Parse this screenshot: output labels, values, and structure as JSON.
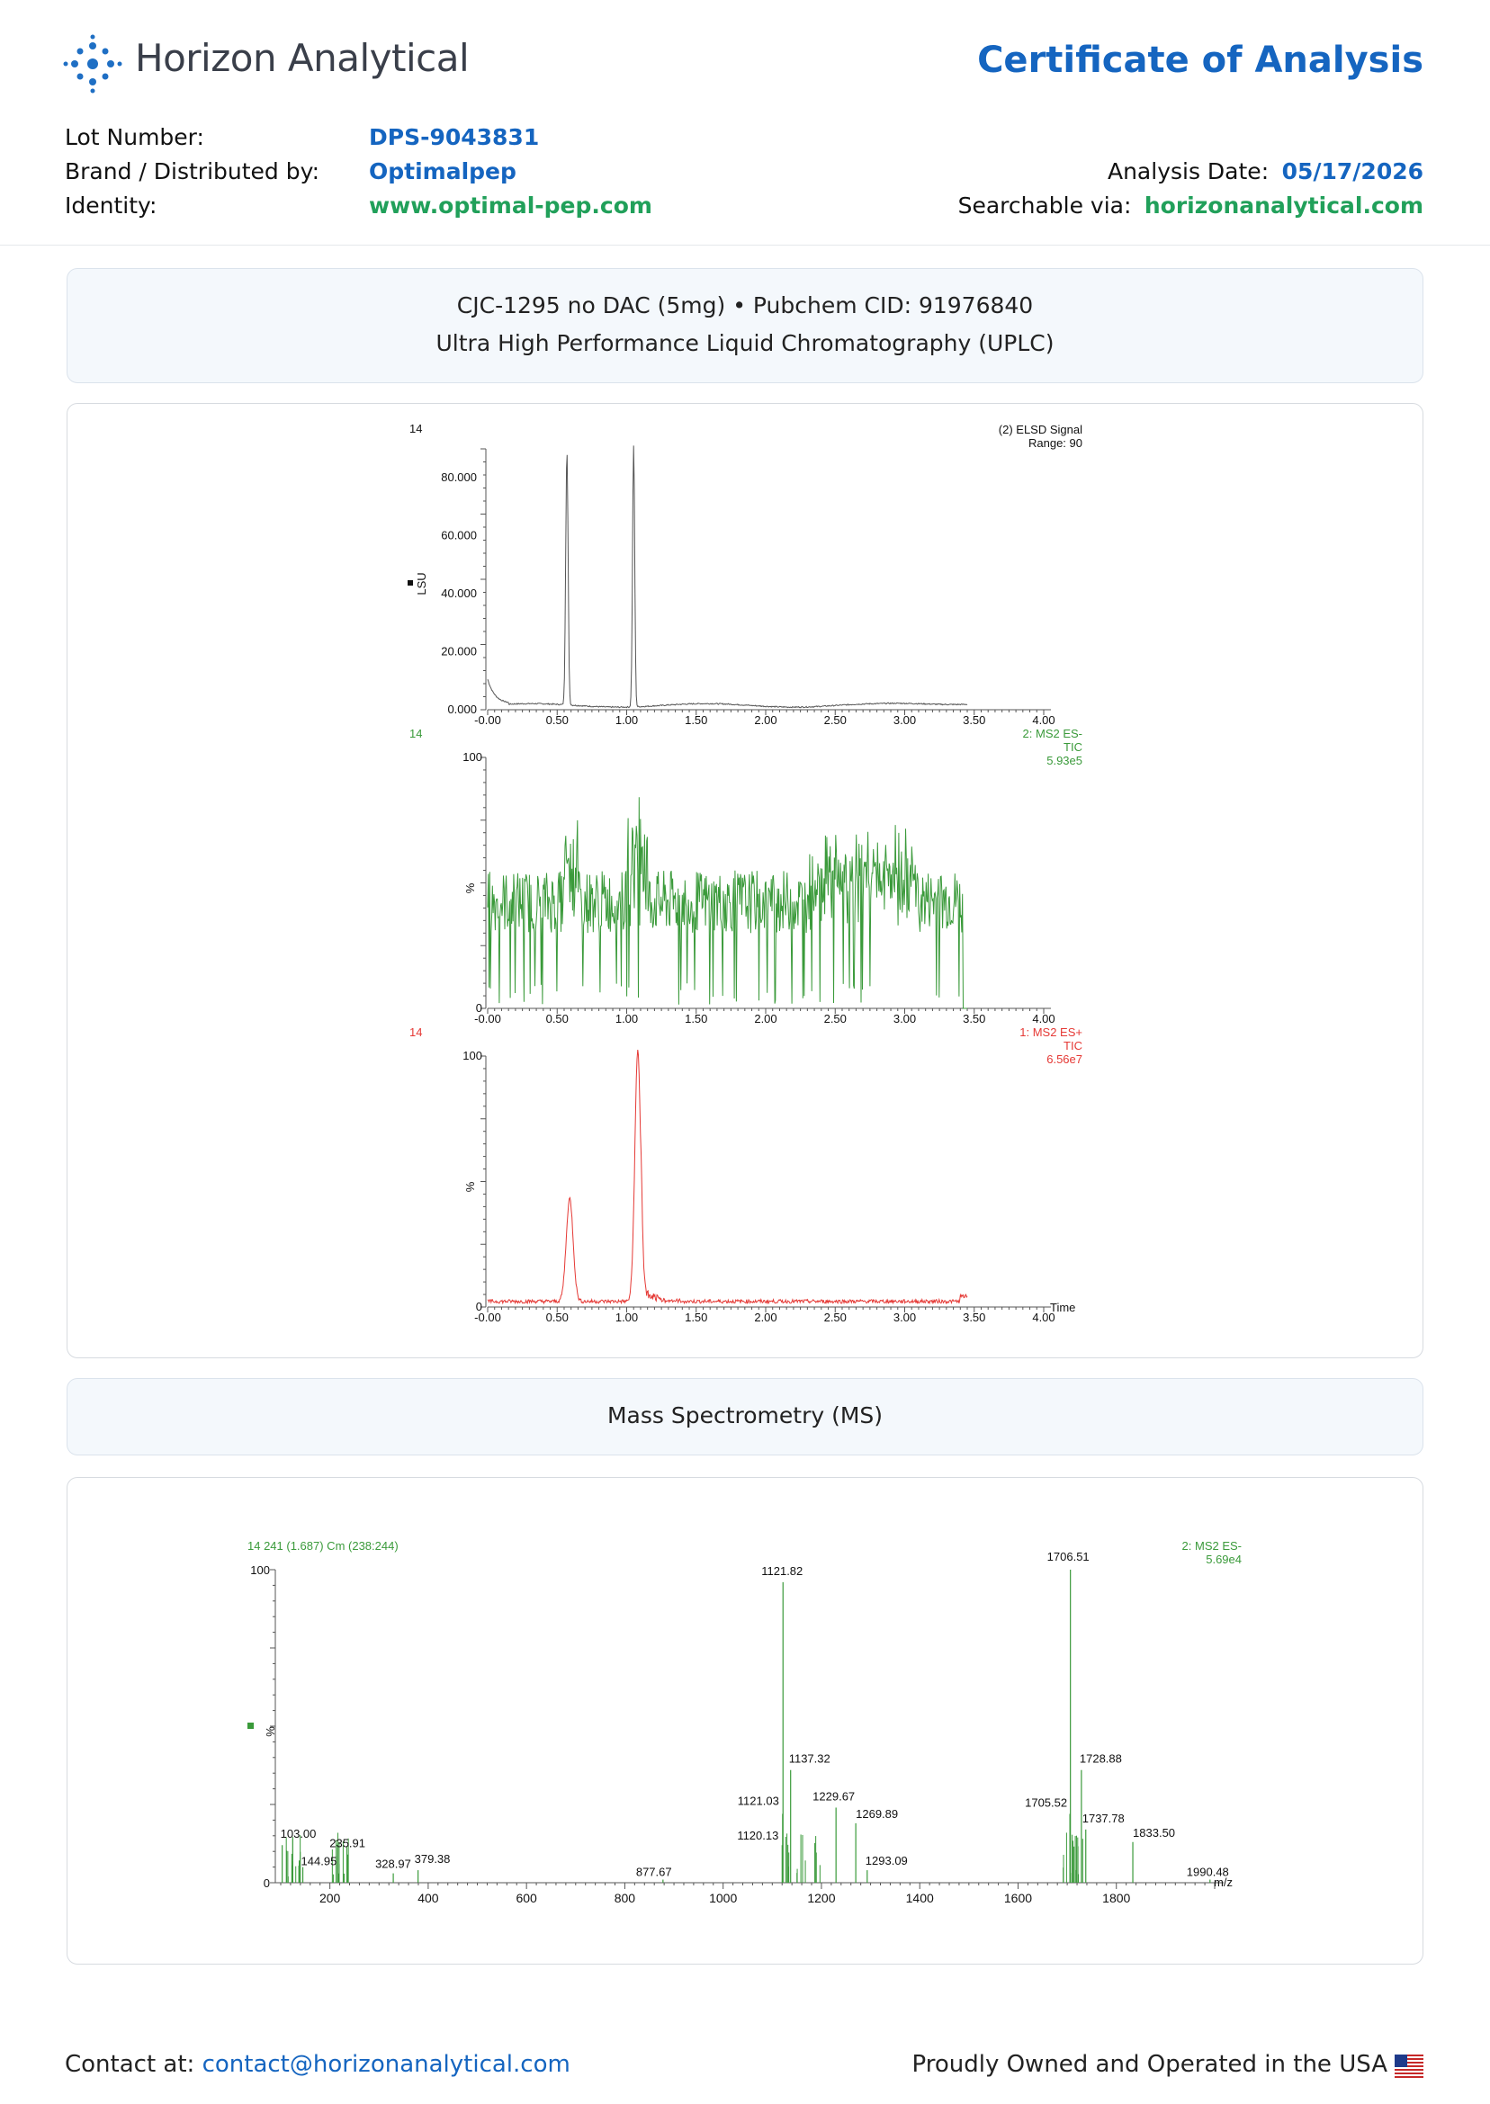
{
  "header": {
    "brand": "Horizon Analytical",
    "title": "Certificate of Analysis"
  },
  "meta": {
    "lot_label": "Lot Number:",
    "lot_value": "DPS-9043831",
    "brand_label": "Brand / Distributed by:",
    "brand_value": "Optimalpep",
    "identity_label": "Identity:",
    "identity_value": "www.optimal-pep.com",
    "date_label": "Analysis Date:",
    "date_value": "05/17/2026",
    "search_label": "Searchable via:",
    "search_value": "horizonanalytical.com"
  },
  "uplc_panel": {
    "line1": "CJC-1295 no DAC (5mg) • Pubchem CID: 91976840",
    "line2": "Ultra High Performance Liquid Chromatography (UPLC)"
  },
  "ms_panel": {
    "title": "Mass Spectrometry (MS)"
  },
  "chart_data": [
    {
      "type": "line",
      "corner_label": "14",
      "ylabel": "LSU",
      "legend": [
        "(2) ELSD Signal",
        "Range: 90"
      ],
      "xlim": [
        0,
        4.0
      ],
      "ylim": [
        0,
        90
      ],
      "x_ticks": [
        "-0.00",
        "0.50",
        "1.00",
        "1.50",
        "2.00",
        "2.50",
        "3.00",
        "3.50",
        "4.00"
      ],
      "y_ticks": [
        "0.000",
        "20.000",
        "40.000",
        "60.000",
        "80.000"
      ],
      "peaks": [
        {
          "x": 0.57,
          "y": 88
        },
        {
          "x": 1.05,
          "y": 90
        }
      ],
      "color": "#555555"
    },
    {
      "type": "line",
      "corner_label": "14",
      "ylabel": "%",
      "legend": [
        "2: MS2 ES-",
        "TIC",
        "5.93e5"
      ],
      "xlim": [
        0,
        4.0
      ],
      "ylim": [
        0,
        100
      ],
      "x_ticks": [
        "-0.00",
        "0.50",
        "1.00",
        "1.50",
        "2.00",
        "2.50",
        "3.00",
        "3.50",
        "4.00"
      ],
      "y_ticks": [
        "0",
        "100"
      ],
      "color": "#3a9a3a"
    },
    {
      "type": "line",
      "corner_label": "14",
      "ylabel": "%",
      "xlabel": "Time",
      "legend": [
        "1: MS2 ES+",
        "TIC",
        "6.56e7"
      ],
      "xlim": [
        0,
        4.0
      ],
      "ylim": [
        0,
        100
      ],
      "x_ticks": [
        "-0.00",
        "0.50",
        "1.00",
        "1.50",
        "2.00",
        "2.50",
        "3.00",
        "3.50",
        "4.00"
      ],
      "y_ticks": [
        "0",
        "100"
      ],
      "peaks": [
        {
          "x": 0.59,
          "y": 41
        },
        {
          "x": 1.08,
          "y": 100
        }
      ],
      "color": "#e53935"
    },
    {
      "type": "bar",
      "title": "14 241 (1.687) Cm (238:244)",
      "legend": [
        "2: MS2 ES-",
        "5.69e4"
      ],
      "ylabel": "%",
      "xlabel": "m/z",
      "xlim": [
        100,
        2000
      ],
      "ylim": [
        0,
        100
      ],
      "x_ticks": [
        "200",
        "400",
        "600",
        "800",
        "1000",
        "1200",
        "1400",
        "1600",
        "1800"
      ],
      "y_ticks": [
        "0",
        "100"
      ],
      "color": "#3a9a3a",
      "labeled_peaks": [
        {
          "mz": 103.0,
          "label": "103.00",
          "y": 12
        },
        {
          "mz": 144.95,
          "label": "144.95",
          "y": 5
        },
        {
          "mz": 235.91,
          "label": "235.91",
          "y": 9
        },
        {
          "mz": 328.97,
          "label": "328.97",
          "y": 3
        },
        {
          "mz": 379.38,
          "label": "379.38",
          "y": 4
        },
        {
          "mz": 877.67,
          "label": "877.67",
          "y": 1
        },
        {
          "mz": 1120.13,
          "label": "1120.13",
          "y": 12
        },
        {
          "mz": 1121.03,
          "label": "1121.03",
          "y": 22
        },
        {
          "mz": 1121.82,
          "label": "1121.82",
          "y": 96
        },
        {
          "mz": 1137.32,
          "label": "1137.32",
          "y": 36
        },
        {
          "mz": 1229.67,
          "label": "1229.67",
          "y": 24
        },
        {
          "mz": 1269.89,
          "label": "1269.89",
          "y": 19
        },
        {
          "mz": 1293.09,
          "label": "1293.09",
          "y": 4
        },
        {
          "mz": 1705.52,
          "label": "1705.52",
          "y": 22
        },
        {
          "mz": 1706.51,
          "label": "1706.51",
          "y": 100
        },
        {
          "mz": 1728.88,
          "label": "1728.88",
          "y": 36
        },
        {
          "mz": 1737.78,
          "label": "1737.78",
          "y": 17
        },
        {
          "mz": 1833.5,
          "label": "1833.50",
          "y": 13
        },
        {
          "mz": 1990.48,
          "label": "1990.48",
          "y": 1
        }
      ]
    }
  ],
  "footer": {
    "contact_label": "Contact at:",
    "contact_email": "contact@horizonanalytical.com",
    "tagline": "Proudly Owned and Operated in the USA"
  }
}
